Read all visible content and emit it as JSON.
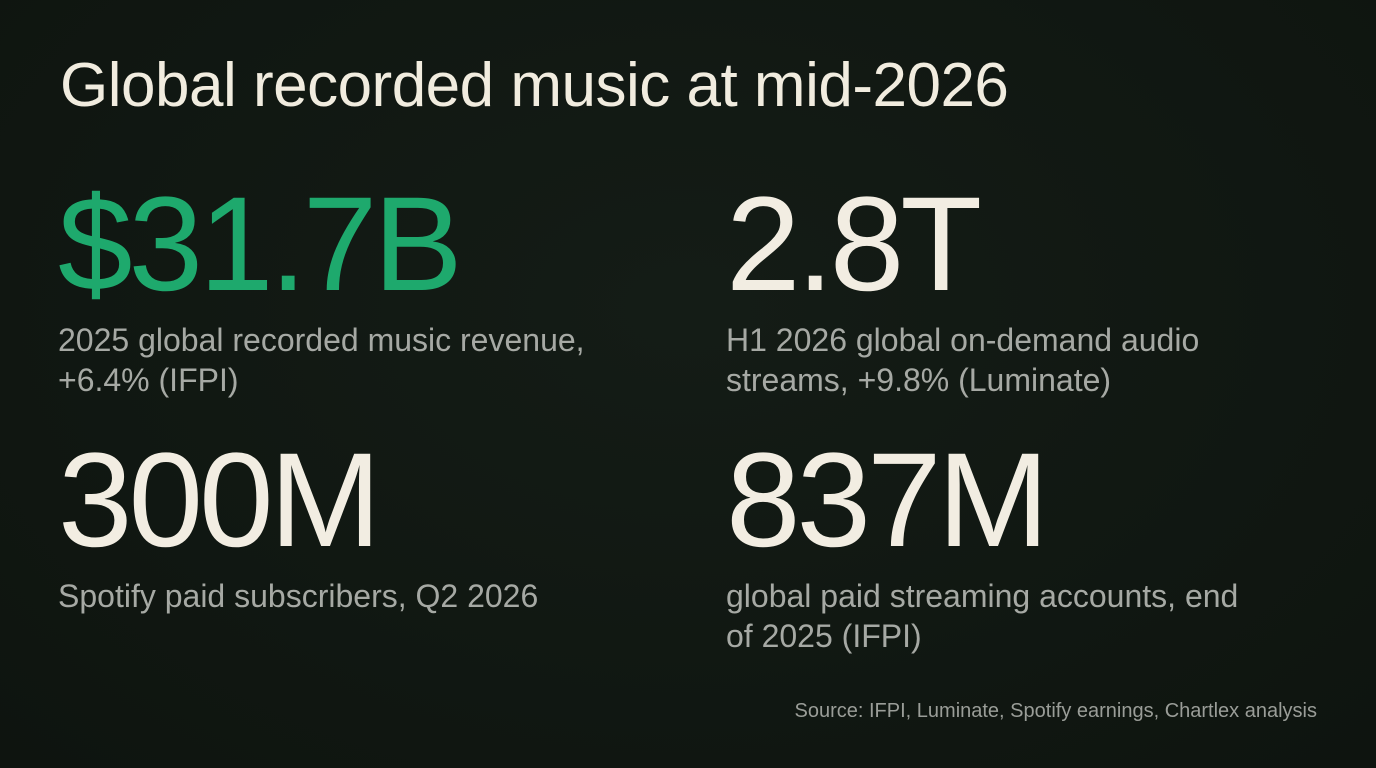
{
  "title": "Global recorded music at mid-2026",
  "stats": [
    {
      "value": "$31.7B",
      "label": "2025 global recorded music revenue, +6.4% (IFPI)"
    },
    {
      "value": "2.8T",
      "label": "H1 2026 global on-demand audio streams, +9.8% (Luminate)"
    },
    {
      "value": "300M",
      "label": "Spotify paid subscribers, Q2 2026"
    },
    {
      "value": "837M",
      "label": "global paid streaming accounts, end of 2025 (IFPI)"
    }
  ],
  "source": "Source: IFPI, Luminate, Spotify earnings, Chartlex analysis"
}
